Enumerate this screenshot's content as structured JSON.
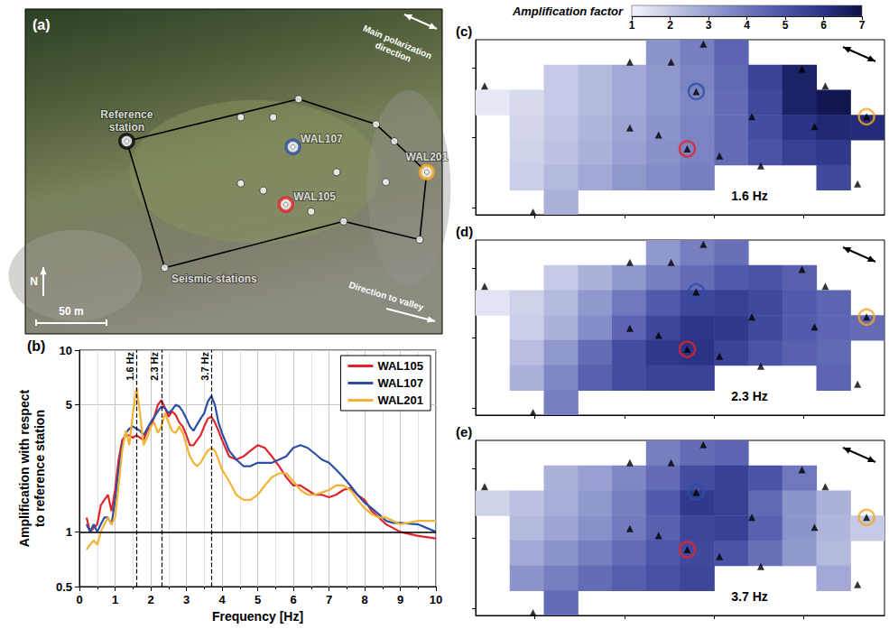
{
  "chart_data": [
    {
      "type": "map",
      "title": "(a)",
      "xlim": [
        0,
        296
      ],
      "ylim": [
        0,
        231
      ],
      "tick_labels": false,
      "stations": {
        "x": [
          72,
          194,
          153,
          176,
          249,
          262,
          285,
          190,
          221,
          256,
          185,
          153,
          169,
          203,
          226,
          280,
          99
        ],
        "y": [
          137,
          167,
          154,
          154,
          149,
          137,
          115,
          133,
          115,
          108,
          92,
          107,
          102,
          87,
          80,
          67,
          47
        ],
        "labels": [
          "Reference station",
          null,
          null,
          null,
          null,
          null,
          "WAL201",
          "WAL107",
          null,
          null,
          "WAL105",
          null,
          null,
          null,
          null,
          null,
          "Seismic stations"
        ],
        "colors": [
          "#ffffff",
          "#ffffff",
          "#ffffff",
          "#ffffff",
          "#ffffff",
          "#ffffff",
          "#ffffff",
          "#ffffff",
          "#ffffff",
          "#ffffff",
          "#ffffff",
          "#ffffff",
          "#ffffff",
          "#ffffff",
          "#ffffff",
          "#ffffff",
          "#ffffff"
        ],
        "highlight": {
          "indices": [
            0,
            6,
            7,
            10
          ],
          "colors": [
            "#000000",
            "#f5a623",
            "#2b4fa5",
            "#e0262b"
          ]
        }
      },
      "outline": [
        0,
        1,
        4,
        5,
        6,
        15,
        14,
        16
      ],
      "annotations": [
        "Main polarization direction",
        "Direction to valley",
        "N"
      ],
      "scale_bar": {
        "value": 50,
        "label": "50 m"
      }
    },
    {
      "type": "line",
      "title": "(b)",
      "x_label": "Frequency [Hz]",
      "y_label": "Amplification with respect to reference station",
      "log": "y",
      "xlim": [
        0,
        10
      ],
      "ylim": [
        0.5,
        10
      ],
      "xticks": [
        0,
        1,
        2,
        3,
        4,
        5,
        6,
        7,
        8,
        9,
        10
      ],
      "yticks": [
        0.5,
        1,
        5,
        10
      ],
      "grid": true,
      "legend": "upper right",
      "hline": 1,
      "vlines": [
        {
          "x": 1.6,
          "label": "1.6 Hz"
        },
        {
          "x": 2.3,
          "label": "2.3 Hz"
        },
        {
          "x": 3.7,
          "label": "3.7 Hz"
        }
      ],
      "x": [
        0.2,
        0.3,
        0.4,
        0.5,
        0.6,
        0.7,
        0.8,
        0.9,
        1.0,
        1.1,
        1.2,
        1.3,
        1.4,
        1.5,
        1.6,
        1.7,
        1.8,
        1.9,
        2.0,
        2.1,
        2.2,
        2.3,
        2.4,
        2.5,
        2.6,
        2.7,
        2.8,
        2.9,
        3.0,
        3.1,
        3.2,
        3.3,
        3.4,
        3.5,
        3.6,
        3.7,
        3.8,
        3.9,
        4.0,
        4.2,
        4.4,
        4.6,
        4.8,
        5.0,
        5.2,
        5.4,
        5.6,
        5.8,
        6.0,
        6.2,
        6.4,
        6.6,
        6.8,
        7.0,
        7.2,
        7.4,
        7.6,
        7.8,
        8.0,
        8.2,
        8.4,
        8.6,
        8.8,
        9.0,
        9.5,
        10.0
      ],
      "series": [
        {
          "name": "WAL105",
          "color": "#e0262b",
          "values": [
            1.2,
            1.0,
            1.05,
            1.1,
            1.4,
            1.5,
            1.6,
            1.3,
            1.7,
            2.5,
            3.2,
            3.4,
            3.4,
            3.3,
            3.4,
            3.3,
            3.2,
            3.6,
            3.8,
            4.3,
            5.0,
            5.3,
            4.8,
            4.3,
            4.6,
            4.4,
            4.0,
            3.8,
            3.4,
            3.0,
            3.0,
            3.2,
            3.4,
            3.8,
            4.2,
            4.3,
            4.0,
            3.6,
            3.2,
            2.6,
            2.5,
            2.6,
            2.8,
            3.0,
            2.9,
            2.6,
            2.3,
            2.0,
            1.8,
            1.8,
            1.7,
            1.6,
            1.6,
            1.55,
            1.6,
            1.7,
            1.75,
            1.6,
            1.5,
            1.3,
            1.2,
            1.1,
            1.05,
            1.0,
            0.95,
            0.92
          ]
        },
        {
          "name": "WAL107",
          "color": "#2b4fa5",
          "values": [
            1.1,
            1.0,
            1.1,
            1.0,
            1.1,
            1.2,
            1.2,
            1.1,
            1.5,
            2.2,
            3.0,
            3.5,
            3.7,
            3.8,
            3.7,
            3.6,
            3.4,
            3.7,
            4.0,
            4.3,
            4.6,
            4.9,
            4.8,
            4.5,
            4.7,
            5.0,
            4.9,
            4.6,
            4.2,
            3.8,
            3.6,
            3.9,
            4.2,
            4.5,
            5.2,
            5.6,
            5.0,
            4.0,
            3.5,
            2.8,
            2.5,
            2.3,
            2.3,
            2.4,
            2.4,
            2.4,
            2.5,
            2.6,
            2.9,
            3.0,
            2.9,
            2.7,
            2.5,
            2.4,
            2.2,
            2.0,
            1.8,
            1.6,
            1.45,
            1.35,
            1.25,
            1.15,
            1.12,
            1.12,
            1.1,
            1.0
          ]
        },
        {
          "name": "WAL201",
          "color": "#f5b335",
          "values": [
            0.8,
            0.85,
            0.9,
            0.85,
            1.0,
            1.1,
            1.2,
            1.1,
            1.2,
            1.8,
            2.8,
            3.6,
            3.0,
            4.5,
            6.2,
            4.5,
            3.0,
            3.3,
            3.8,
            4.0,
            3.5,
            3.8,
            4.5,
            4.0,
            3.6,
            3.5,
            3.8,
            3.5,
            3.0,
            2.6,
            2.4,
            2.3,
            2.4,
            2.6,
            2.8,
            2.9,
            2.8,
            2.5,
            2.2,
            1.9,
            1.6,
            1.5,
            1.5,
            1.6,
            1.8,
            2.0,
            2.1,
            2.1,
            1.9,
            1.7,
            1.6,
            1.6,
            1.65,
            1.7,
            1.8,
            1.8,
            1.7,
            1.5,
            1.35,
            1.25,
            1.2,
            1.2,
            1.15,
            1.1,
            1.15,
            1.15
          ]
        }
      ]
    },
    {
      "type": "heatmap",
      "title": "(c)",
      "annotations": [
        "1.6 Hz"
      ],
      "xlim": [
        67,
        295
      ],
      "ylim": [
        45,
        170
      ],
      "xticks": [
        100,
        150,
        200,
        250
      ],
      "yticks": [
        50,
        100,
        150
      ],
      "tick_labels": false,
      "colorbar": {
        "label": "Amplification factor",
        "range": [
          1,
          7
        ],
        "ticks": [
          1,
          2,
          3,
          4,
          5,
          6,
          7
        ]
      },
      "cells": [
        [
          null,
          null,
          null,
          null,
          null,
          3.3,
          3.8,
          4.5,
          null,
          null,
          null,
          null
        ],
        [
          null,
          null,
          2.0,
          2.4,
          2.8,
          3.2,
          3.7,
          4.4,
          5.5,
          6.5,
          null,
          null
        ],
        [
          1.3,
          1.6,
          2.0,
          2.4,
          2.8,
          3.2,
          3.6,
          4.3,
          5.3,
          6.5,
          6.8,
          null
        ],
        [
          null,
          1.7,
          2.1,
          2.5,
          2.9,
          3.3,
          3.7,
          4.3,
          5.2,
          6.0,
          6.3,
          6.2
        ],
        [
          null,
          1.8,
          2.2,
          2.6,
          3.0,
          3.4,
          3.7,
          4.3,
          5.0,
          5.6,
          5.8,
          null
        ],
        [
          null,
          1.9,
          2.4,
          2.8,
          3.2,
          3.5,
          3.8,
          null,
          null,
          null,
          5.3,
          null
        ],
        [
          null,
          null,
          2.6,
          null,
          null,
          null,
          null,
          null,
          null,
          null,
          null,
          null
        ]
      ],
      "stations": {
        "x": [
          72,
          194,
          153,
          176,
          249,
          262,
          285,
          190,
          221,
          256,
          185,
          153,
          169,
          203,
          226,
          280,
          99
        ],
        "y": [
          137,
          167,
          154,
          154,
          149,
          137,
          115,
          133,
          115,
          108,
          92,
          107,
          102,
          87,
          80,
          67,
          47
        ],
        "colors": [
          "#000000",
          "#000000",
          "#000000",
          "#000000",
          "#000000",
          "#000000",
          "#000000",
          "#000000",
          "#000000",
          "#000000",
          "#000000",
          "#000000",
          "#000000",
          "#000000",
          "#000000",
          "#000000",
          "#000000"
        ],
        "highlight": {
          "indices": [
            6,
            7,
            10
          ],
          "colors": [
            "#f5a623",
            "#2b4fa5",
            "#e0262b"
          ]
        }
      }
    },
    {
      "type": "heatmap",
      "title": "(d)",
      "annotations": [
        "2.3 Hz"
      ],
      "xlim": [
        67,
        295
      ],
      "ylim": [
        45,
        170
      ],
      "xticks": [
        100,
        150,
        200,
        250
      ],
      "yticks": [
        50,
        100,
        150
      ],
      "tick_labels": false,
      "cells": [
        [
          null,
          null,
          null,
          null,
          null,
          3.2,
          3.8,
          4.2,
          null,
          null,
          null,
          null
        ],
        [
          null,
          null,
          2.0,
          2.6,
          3.2,
          3.8,
          4.3,
          4.8,
          5.0,
          4.6,
          null,
          null
        ],
        [
          1.4,
          1.8,
          2.4,
          3.2,
          4.0,
          4.8,
          5.4,
          5.6,
          5.3,
          4.8,
          4.5,
          null
        ],
        [
          null,
          1.9,
          2.6,
          3.5,
          4.5,
          5.4,
          5.9,
          5.8,
          5.3,
          4.8,
          4.5,
          4.3
        ],
        [
          null,
          2.3,
          3.2,
          4.3,
          5.2,
          5.8,
          6.0,
          5.5,
          5.0,
          4.6,
          4.4,
          null
        ],
        [
          null,
          2.6,
          3.6,
          4.6,
          5.2,
          5.5,
          5.5,
          null,
          null,
          null,
          4.5,
          null
        ],
        [
          null,
          null,
          3.8,
          null,
          null,
          null,
          null,
          null,
          null,
          null,
          null,
          null
        ]
      ],
      "stations": {
        "x": [
          72,
          194,
          153,
          176,
          249,
          262,
          285,
          190,
          221,
          256,
          185,
          153,
          169,
          203,
          226,
          280,
          99
        ],
        "y": [
          137,
          167,
          154,
          154,
          149,
          137,
          115,
          133,
          115,
          108,
          92,
          107,
          102,
          87,
          80,
          67,
          47
        ],
        "colors": [
          "#000000",
          "#000000",
          "#000000",
          "#000000",
          "#000000",
          "#000000",
          "#000000",
          "#000000",
          "#000000",
          "#000000",
          "#000000",
          "#000000",
          "#000000",
          "#000000",
          "#000000",
          "#000000",
          "#000000"
        ],
        "highlight": {
          "indices": [
            6,
            7,
            10
          ],
          "colors": [
            "#f5a623",
            "#2b4fa5",
            "#e0262b"
          ]
        }
      }
    },
    {
      "type": "heatmap",
      "title": "(e)",
      "annotations": [
        "3.7 Hz"
      ],
      "xlim": [
        67,
        295
      ],
      "ylim": [
        45,
        170
      ],
      "xticks": [
        100,
        150,
        200,
        250
      ],
      "yticks": [
        50,
        100,
        150
      ],
      "tick_labels": false,
      "cells": [
        [
          null,
          null,
          null,
          null,
          null,
          3.8,
          4.3,
          4.5,
          null,
          null,
          null,
          null
        ],
        [
          null,
          null,
          2.6,
          3.0,
          3.6,
          4.3,
          5.2,
          5.6,
          5.0,
          4.0,
          null,
          null
        ],
        [
          1.8,
          2.2,
          2.7,
          3.2,
          3.8,
          4.8,
          5.8,
          5.6,
          4.4,
          3.3,
          2.6,
          null
        ],
        [
          null,
          2.4,
          2.9,
          3.4,
          3.9,
          4.6,
          5.4,
          5.6,
          4.6,
          3.3,
          2.5,
          2.0
        ],
        [
          null,
          2.8,
          3.3,
          3.8,
          4.3,
          4.9,
          5.3,
          5.0,
          4.2,
          3.2,
          2.4,
          null
        ],
        [
          null,
          3.3,
          3.8,
          4.3,
          4.7,
          5.1,
          5.4,
          null,
          null,
          null,
          2.8,
          null
        ],
        [
          null,
          null,
          4.3,
          null,
          null,
          null,
          null,
          null,
          null,
          null,
          null,
          null
        ]
      ],
      "stations": {
        "x": [
          72,
          194,
          153,
          176,
          249,
          262,
          285,
          190,
          221,
          256,
          185,
          153,
          169,
          203,
          226,
          280,
          99
        ],
        "y": [
          137,
          167,
          154,
          154,
          149,
          137,
          115,
          133,
          115,
          108,
          92,
          107,
          102,
          87,
          80,
          67,
          47
        ],
        "colors": [
          "#000000",
          "#000000",
          "#000000",
          "#000000",
          "#000000",
          "#000000",
          "#000000",
          "#000000",
          "#000000",
          "#000000",
          "#000000",
          "#000000",
          "#000000",
          "#000000",
          "#000000",
          "#000000",
          "#000000"
        ],
        "highlight": {
          "indices": [
            6,
            7,
            10
          ],
          "colors": [
            "#f5a623",
            "#2b4fa5",
            "#e0262b"
          ]
        }
      }
    }
  ]
}
